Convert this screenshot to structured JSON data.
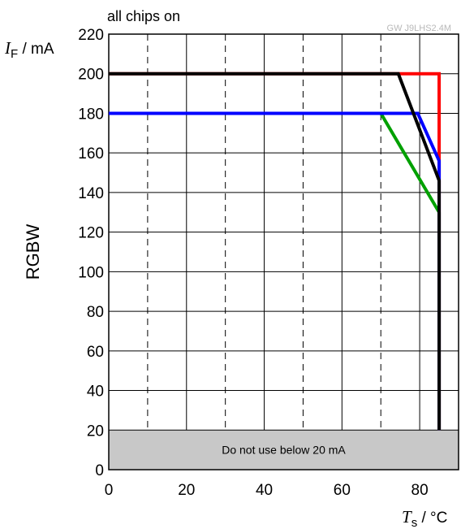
{
  "chart_data": {
    "type": "line",
    "title": "all chips on",
    "doc_code": "GW J9LHS2.4M",
    "side_label": "RGBW",
    "xlabel": {
      "var": "T",
      "sub": "s",
      "unit": " / °C"
    },
    "ylabel": {
      "var": "I",
      "sub": "F",
      "unit": " / mA"
    },
    "xlim": [
      0,
      90
    ],
    "ylim": [
      0,
      220
    ],
    "x_ticks": [
      0,
      20,
      40,
      60,
      80
    ],
    "y_ticks": [
      0,
      20,
      40,
      60,
      80,
      100,
      120,
      140,
      160,
      180,
      200,
      220
    ],
    "x_grid_solid": [
      20,
      40,
      60,
      80
    ],
    "x_grid_dashed": [
      10,
      30,
      50,
      70
    ],
    "grid": true,
    "legend": "none",
    "shaded_region": {
      "y_from": 0,
      "y_to": 20,
      "label": "Do not use below 20 mA",
      "color": "#c8c8c8"
    },
    "series": [
      {
        "color": "#00a000",
        "points": [
          [
            0,
            180
          ],
          [
            70,
            180
          ],
          [
            85,
            130
          ],
          [
            85,
            20
          ]
        ]
      },
      {
        "color": "#ff0000",
        "points": [
          [
            0,
            200
          ],
          [
            85,
            200
          ],
          [
            85,
            20
          ]
        ]
      },
      {
        "color": "#0000ff",
        "points": [
          [
            0,
            180
          ],
          [
            79.5,
            180
          ],
          [
            85,
            156
          ],
          [
            85,
            20
          ]
        ]
      },
      {
        "color": "#000000",
        "points": [
          [
            0,
            200
          ],
          [
            74.5,
            200
          ],
          [
            85,
            146
          ],
          [
            85,
            20
          ]
        ]
      }
    ]
  }
}
